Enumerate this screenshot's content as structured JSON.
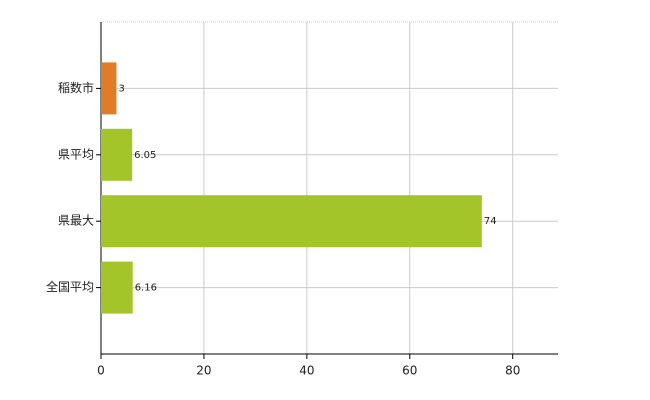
{
  "chart_data": {
    "type": "bar",
    "orientation": "horizontal",
    "categories": [
      "稲数市",
      "県平均",
      "県最大",
      "全国平均"
    ],
    "values": [
      3,
      6.05,
      74,
      6.16
    ],
    "colors": [
      "#e07b28",
      "#a3c52a",
      "#a3c52a",
      "#a3c52a"
    ],
    "xlim": [
      0,
      88.8
    ],
    "xticks": [
      0,
      20,
      40,
      60,
      80
    ],
    "grid": true
  }
}
